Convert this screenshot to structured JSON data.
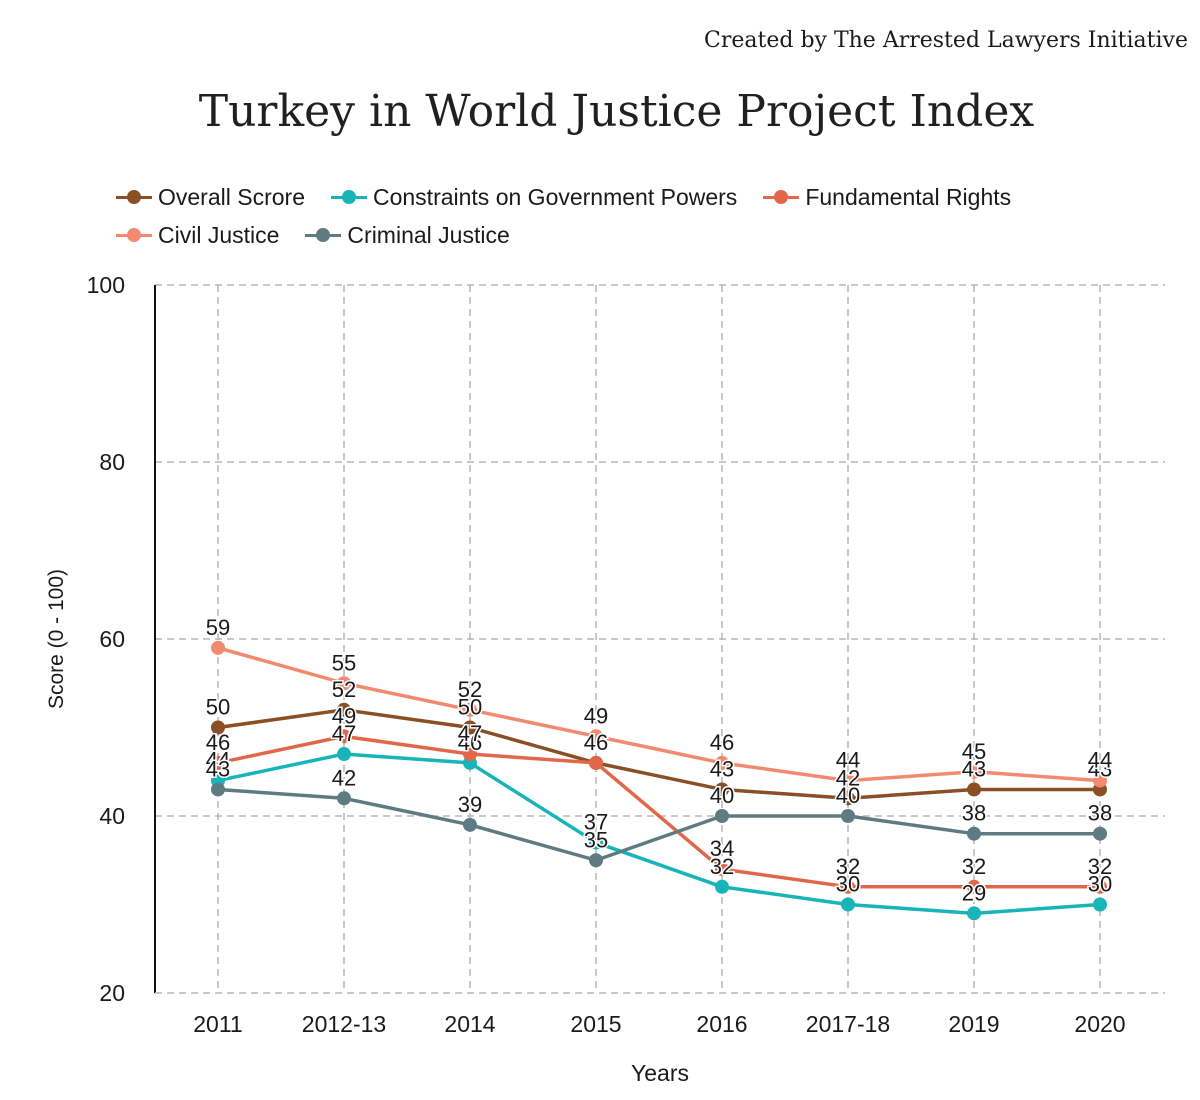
{
  "header": {
    "credit": "Created by The Arrested Lawyers Initiative"
  },
  "chart_data": {
    "type": "line",
    "title": "Turkey in World Justice Project Index",
    "xlabel": "Years",
    "ylabel": "Score (0 - 100)",
    "ylim": [
      20,
      100
    ],
    "yticks": [
      "20",
      "40",
      "60",
      "80",
      "100"
    ],
    "grid": true,
    "legend_position": "top-left",
    "categories": [
      "2011",
      "2012-13",
      "2014",
      "2015",
      "2016",
      "2017-18",
      "2019",
      "2020"
    ],
    "series": [
      {
        "name": "Overall Scrore",
        "color": "#8a4f24",
        "values": [
          50,
          52,
          50,
          46,
          43,
          42,
          43,
          43
        ],
        "labels": [
          "50",
          "52",
          "50",
          "46",
          "43",
          "42",
          "43",
          "43"
        ]
      },
      {
        "name": "Constraints on Government Powers",
        "color": "#17b4b8",
        "values": [
          44,
          47,
          46,
          37,
          32,
          30,
          29,
          30
        ],
        "labels": [
          "44",
          "47",
          "46",
          "37",
          "32",
          "30",
          "29",
          "30"
        ]
      },
      {
        "name": "Fundamental Rights",
        "color": "#e2674a",
        "values": [
          46,
          49,
          47,
          46,
          34,
          32,
          32,
          32
        ],
        "labels": [
          "46",
          "49",
          "47",
          "46",
          "34",
          "32",
          "32",
          "32"
        ]
      },
      {
        "name": "Civil Justice",
        "color": "#f28a6f",
        "values": [
          59,
          55,
          52,
          49,
          46,
          44,
          45,
          44
        ],
        "labels": [
          "59",
          "55",
          "52",
          "49",
          "46",
          "44",
          "45",
          "44"
        ]
      },
      {
        "name": "Criminal Justice",
        "color": "#5f7b82",
        "values": [
          43,
          42,
          39,
          35,
          40,
          40,
          38,
          38
        ],
        "labels": [
          "43",
          "42",
          "39",
          "35",
          "40",
          "40",
          "38",
          "38"
        ]
      }
    ]
  }
}
